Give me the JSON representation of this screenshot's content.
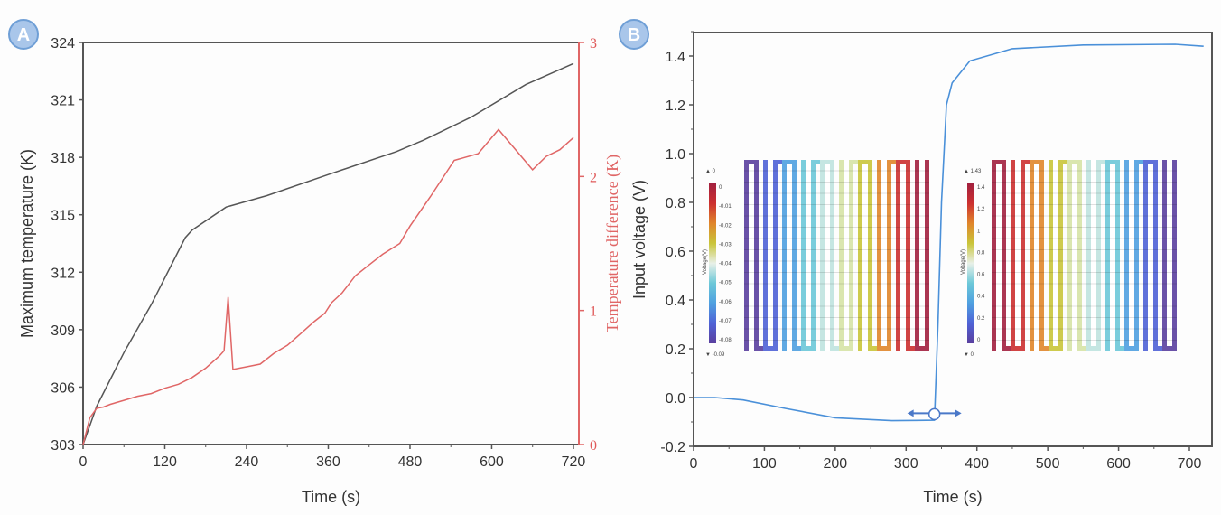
{
  "panels": {
    "a_label": "A",
    "b_label": "B"
  },
  "chart_data": [
    {
      "type": "line",
      "panel": "A",
      "xlabel": "Time (s)",
      "ylabel": "Maximum temperature (K)",
      "y2label": "Temperature difference (K)",
      "xlim": [
        0,
        728
      ],
      "ylim": [
        303,
        324
      ],
      "y2lim": [
        0,
        3
      ],
      "xticks": [
        0,
        120,
        240,
        360,
        480,
        600,
        720
      ],
      "yticks": [
        303,
        306,
        309,
        312,
        315,
        318,
        321,
        324
      ],
      "y2ticks": [
        0,
        1,
        2,
        3
      ],
      "grid": false,
      "series": [
        {
          "name": "Maximum temperature",
          "axis": "left",
          "color": "#555555",
          "x": [
            0,
            20,
            60,
            100,
            150,
            160,
            210,
            270,
            360,
            460,
            500,
            570,
            650,
            720
          ],
          "y": [
            303,
            305,
            307.8,
            310.3,
            313.8,
            314.2,
            315.4,
            316,
            317.1,
            318.3,
            318.9,
            320.1,
            321.8,
            322.9
          ]
        },
        {
          "name": "Temperature difference",
          "axis": "right",
          "color": "#e06666",
          "x": [
            0,
            10,
            20,
            30,
            40,
            60,
            80,
            100,
            120,
            140,
            160,
            180,
            200,
            207,
            213,
            220,
            240,
            260,
            280,
            300,
            320,
            340,
            355,
            365,
            380,
            400,
            420,
            440,
            465,
            480,
            510,
            545,
            580,
            610,
            660,
            680,
            700,
            720
          ],
          "y": [
            0,
            0.2,
            0.27,
            0.28,
            0.3,
            0.33,
            0.36,
            0.38,
            0.42,
            0.45,
            0.5,
            0.57,
            0.66,
            0.7,
            1.1,
            0.56,
            0.58,
            0.6,
            0.68,
            0.74,
            0.83,
            0.92,
            0.98,
            1.06,
            1.13,
            1.26,
            1.34,
            1.42,
            1.5,
            1.63,
            1.85,
            2.12,
            2.17,
            2.35,
            2.05,
            2.15,
            2.2,
            2.29
          ]
        }
      ]
    },
    {
      "type": "line",
      "panel": "B",
      "xlabel": "Time (s)",
      "ylabel": "Input voltage (V)",
      "xlim": [
        0,
        732
      ],
      "ylim": [
        -0.2,
        1.5
      ],
      "xticks": [
        0,
        100,
        200,
        300,
        400,
        500,
        600,
        700
      ],
      "yticks": [
        -0.2,
        0.0,
        0.2,
        0.4,
        0.6,
        0.8,
        1.0,
        1.2,
        1.4
      ],
      "ytick_labels": [
        "-0.2",
        "0.0",
        "0.2",
        "0.4",
        "0.6",
        "0.8",
        "1.0",
        "1.2",
        "1.4"
      ],
      "grid": false,
      "series": [
        {
          "name": "Input voltage",
          "color": "#4a90d9",
          "x": [
            0,
            30,
            70,
            130,
            200,
            280,
            340,
            345,
            350,
            357,
            365,
            390,
            450,
            550,
            680,
            720
          ],
          "y": [
            0,
            0,
            -0.01,
            -0.045,
            -0.083,
            -0.095,
            -0.093,
            0.3,
            0.8,
            1.2,
            1.29,
            1.38,
            1.43,
            1.445,
            1.448,
            1.44
          ]
        }
      ],
      "annotation": {
        "type": "double-arrow-with-circle",
        "x": 340,
        "y": -0.02
      },
      "insets": [
        {
          "colorbar_title": "Voltage(V)",
          "max_label": "0",
          "min_label": "-0.09",
          "ticks": [
            "0",
            "-0.01",
            "-0.02",
            "-0.03",
            "-0.04",
            "-0.05",
            "-0.06",
            "-0.07",
            "-0.08"
          ],
          "strip_colors": [
            "#5a3f9e",
            "#4f62d6",
            "#4fa0e0",
            "#6cc8d8",
            "#bfe3df",
            "#d6e3a6",
            "#c9c53a",
            "#e0862b",
            "#cc3030",
            "#a2203f"
          ]
        },
        {
          "colorbar_title": "Voltage(V)",
          "max_label": "1.43",
          "min_label": "0",
          "ticks": [
            "1.4",
            "1.2",
            "1",
            "0.8",
            "0.6",
            "0.4",
            "0.2",
            "0"
          ],
          "strip_colors": [
            "#a2203f",
            "#cc3030",
            "#e0862b",
            "#c9c53a",
            "#d6e3a6",
            "#bfe3df",
            "#6cc8d8",
            "#4fa0e0",
            "#4f62d6",
            "#5a3f9e"
          ]
        }
      ]
    }
  ]
}
